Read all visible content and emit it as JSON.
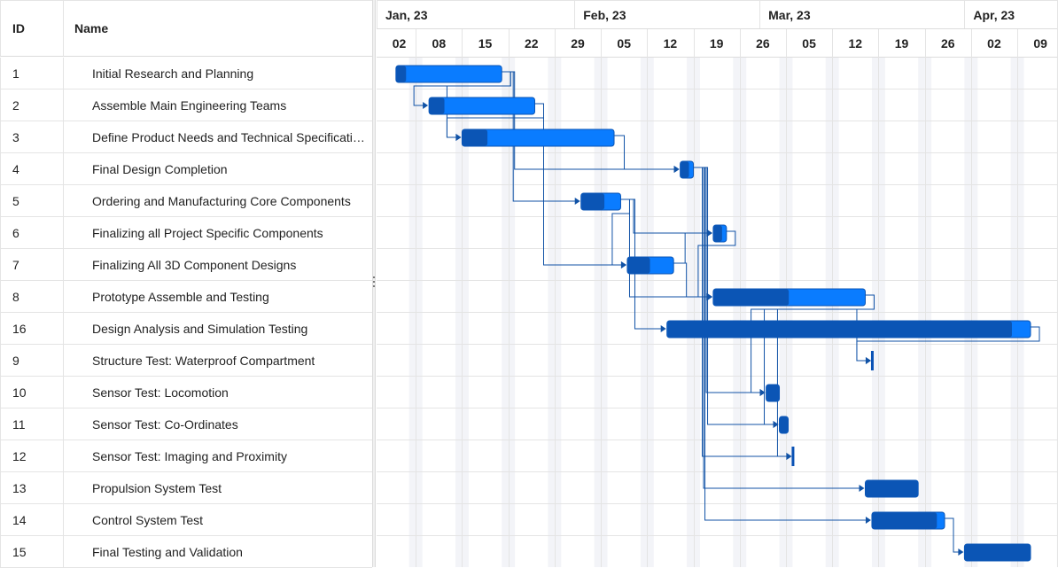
{
  "grid": {
    "headers": {
      "id": "ID",
      "name": "Name"
    },
    "rows": [
      {
        "id": "1",
        "name": "Initial Research and Planning"
      },
      {
        "id": "2",
        "name": "Assemble Main Engineering Teams"
      },
      {
        "id": "3",
        "name": "Define Product Needs and Technical Specifications"
      },
      {
        "id": "4",
        "name": "Final Design Completion"
      },
      {
        "id": "5",
        "name": "Ordering and Manufacturing Core Components"
      },
      {
        "id": "6",
        "name": "Finalizing all Project Specific Components"
      },
      {
        "id": "7",
        "name": "Finalizing All 3D Component Designs"
      },
      {
        "id": "8",
        "name": "Prototype Assemble and Testing"
      },
      {
        "id": "16",
        "name": "Design Analysis and Simulation Testing"
      },
      {
        "id": "9",
        "name": "Structure Test: Waterproof Compartment"
      },
      {
        "id": "10",
        "name": "Sensor Test: Locomotion"
      },
      {
        "id": "11",
        "name": "Sensor Test: Co-Ordinates"
      },
      {
        "id": "12",
        "name": "Sensor Test: Imaging and Proximity"
      },
      {
        "id": "13",
        "name": "Propulsion System Test"
      },
      {
        "id": "14",
        "name": "Control System Test"
      },
      {
        "id": "15",
        "name": "Final Testing and Validation"
      }
    ]
  },
  "timeline": {
    "months": [
      "Jan, 23",
      "Feb, 23",
      "Mar, 23",
      "Apr, 23"
    ],
    "weeks": [
      "02",
      "08",
      "15",
      "22",
      "29",
      "05",
      "12",
      "19",
      "26",
      "05",
      "12",
      "19",
      "26",
      "02",
      "09"
    ]
  },
  "colors": {
    "bar": "#0a7cff",
    "progress": "#0b55b5",
    "bar_dark": "#0a52b5",
    "dependency": "#1052a6",
    "grid_line": "#e4e4e4",
    "weekend": "#f3f4f8"
  },
  "tasks": [
    {
      "row": 0,
      "start_day": 4,
      "duration": 16,
      "progress": 0.1
    },
    {
      "row": 1,
      "start_day": 9,
      "duration": 16,
      "progress": 0.15
    },
    {
      "row": 2,
      "start_day": 14,
      "duration": 23,
      "progress": 0.17
    },
    {
      "row": 3,
      "start_day": 47,
      "duration": 2,
      "progress": 0.7
    },
    {
      "row": 4,
      "start_day": 32,
      "duration": 6,
      "progress": 0.6
    },
    {
      "row": 5,
      "start_day": 52,
      "duration": 2,
      "progress": 0.7
    },
    {
      "row": 6,
      "start_day": 39,
      "duration": 7,
      "progress": 0.5
    },
    {
      "row": 7,
      "start_day": 52,
      "duration": 23,
      "progress": 0.5
    },
    {
      "row": 8,
      "start_day": 45,
      "duration": 55,
      "progress": 0.95
    },
    {
      "row": 9,
      "start_day": 76,
      "duration": 0,
      "milestone": true
    },
    {
      "row": 10,
      "start_day": 60,
      "duration": 2,
      "progress": 1.0
    },
    {
      "row": 11,
      "start_day": 62,
      "duration": 1,
      "progress": 1.0
    },
    {
      "row": 12,
      "start_day": 64,
      "duration": 0,
      "milestone": true
    },
    {
      "row": 13,
      "start_day": 75,
      "duration": 8,
      "progress": 1.0
    },
    {
      "row": 14,
      "start_day": 76,
      "duration": 11,
      "progress": 0.9
    },
    {
      "row": 15,
      "start_day": 90,
      "duration": 10,
      "progress": 1.0
    }
  ],
  "dependencies": [
    [
      0,
      1
    ],
    [
      0,
      2
    ],
    [
      0,
      4
    ],
    [
      0,
      3
    ],
    [
      1,
      2
    ],
    [
      1,
      6
    ],
    [
      2,
      3
    ],
    [
      3,
      7
    ],
    [
      3,
      10
    ],
    [
      3,
      11
    ],
    [
      3,
      12
    ],
    [
      3,
      13
    ],
    [
      3,
      14
    ],
    [
      4,
      5
    ],
    [
      4,
      6
    ],
    [
      4,
      7
    ],
    [
      5,
      7
    ],
    [
      6,
      5
    ],
    [
      6,
      7
    ],
    [
      7,
      9
    ],
    [
      7,
      10
    ],
    [
      7,
      11
    ],
    [
      7,
      12
    ],
    [
      8,
      9
    ],
    [
      4,
      8
    ],
    [
      14,
      15
    ]
  ]
}
